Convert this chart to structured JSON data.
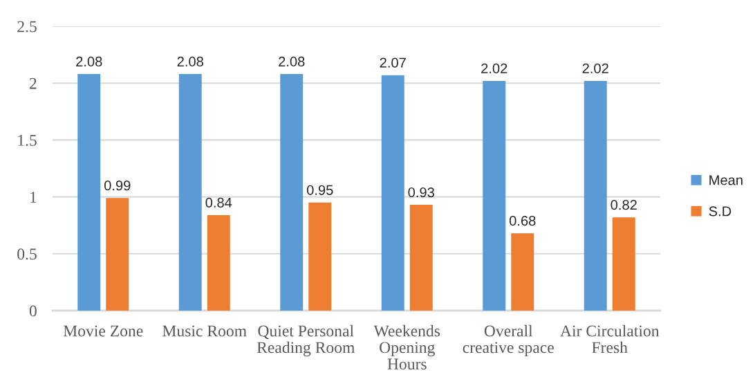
{
  "chart_data": {
    "type": "bar",
    "categories": [
      "Movie Zone",
      "Music Room",
      "Quiet Personal\nReading Room",
      "Weekends\nOpening\nHours",
      "Overall\ncreative space",
      "Air Circulation\nFresh"
    ],
    "series": [
      {
        "name": "Mean",
        "color": "#5b9bd5",
        "values": [
          2.08,
          2.08,
          2.08,
          2.07,
          2.02,
          2.02
        ]
      },
      {
        "name": "S.D",
        "color": "#ed7d31",
        "values": [
          0.99,
          0.84,
          0.95,
          0.93,
          0.68,
          0.82
        ]
      }
    ],
    "ylim": [
      0,
      2.5
    ],
    "yticks": [
      0,
      0.5,
      1,
      1.5,
      2,
      2.5
    ],
    "grid": "y",
    "legend": "right",
    "data_labels": true
  }
}
